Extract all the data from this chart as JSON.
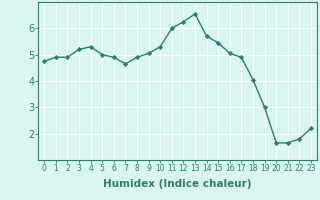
{
  "title": "",
  "xlabel": "Humidex (Indice chaleur)",
  "x": [
    0,
    1,
    2,
    3,
    4,
    5,
    6,
    7,
    8,
    9,
    10,
    11,
    12,
    13,
    14,
    15,
    16,
    17,
    18,
    19,
    20,
    21,
    22,
    23
  ],
  "y": [
    4.75,
    4.9,
    4.9,
    5.2,
    5.3,
    5.0,
    4.9,
    4.65,
    4.9,
    5.05,
    5.3,
    6.0,
    6.25,
    6.55,
    5.7,
    5.45,
    5.05,
    4.9,
    4.05,
    3.0,
    1.65,
    1.65,
    1.8,
    2.2
  ],
  "line_color": "#2e7d6e",
  "marker": "D",
  "marker_size": 2.2,
  "line_width": 1.0,
  "bg_color": "#d8f5f0",
  "grid_color": "#ffffff",
  "tick_color": "#2e7d6e",
  "label_color": "#2e7d6e",
  "ylim": [
    1.0,
    7.0
  ],
  "yticks": [
    2,
    3,
    4,
    5,
    6
  ],
  "xlim": [
    -0.5,
    23.5
  ],
  "xticks": [
    0,
    1,
    2,
    3,
    4,
    5,
    6,
    7,
    8,
    9,
    10,
    11,
    12,
    13,
    14,
    15,
    16,
    17,
    18,
    19,
    20,
    21,
    22,
    23
  ],
  "xlabel_fontsize": 7.5,
  "ytick_fontsize": 7.0,
  "xtick_fontsize": 5.5
}
